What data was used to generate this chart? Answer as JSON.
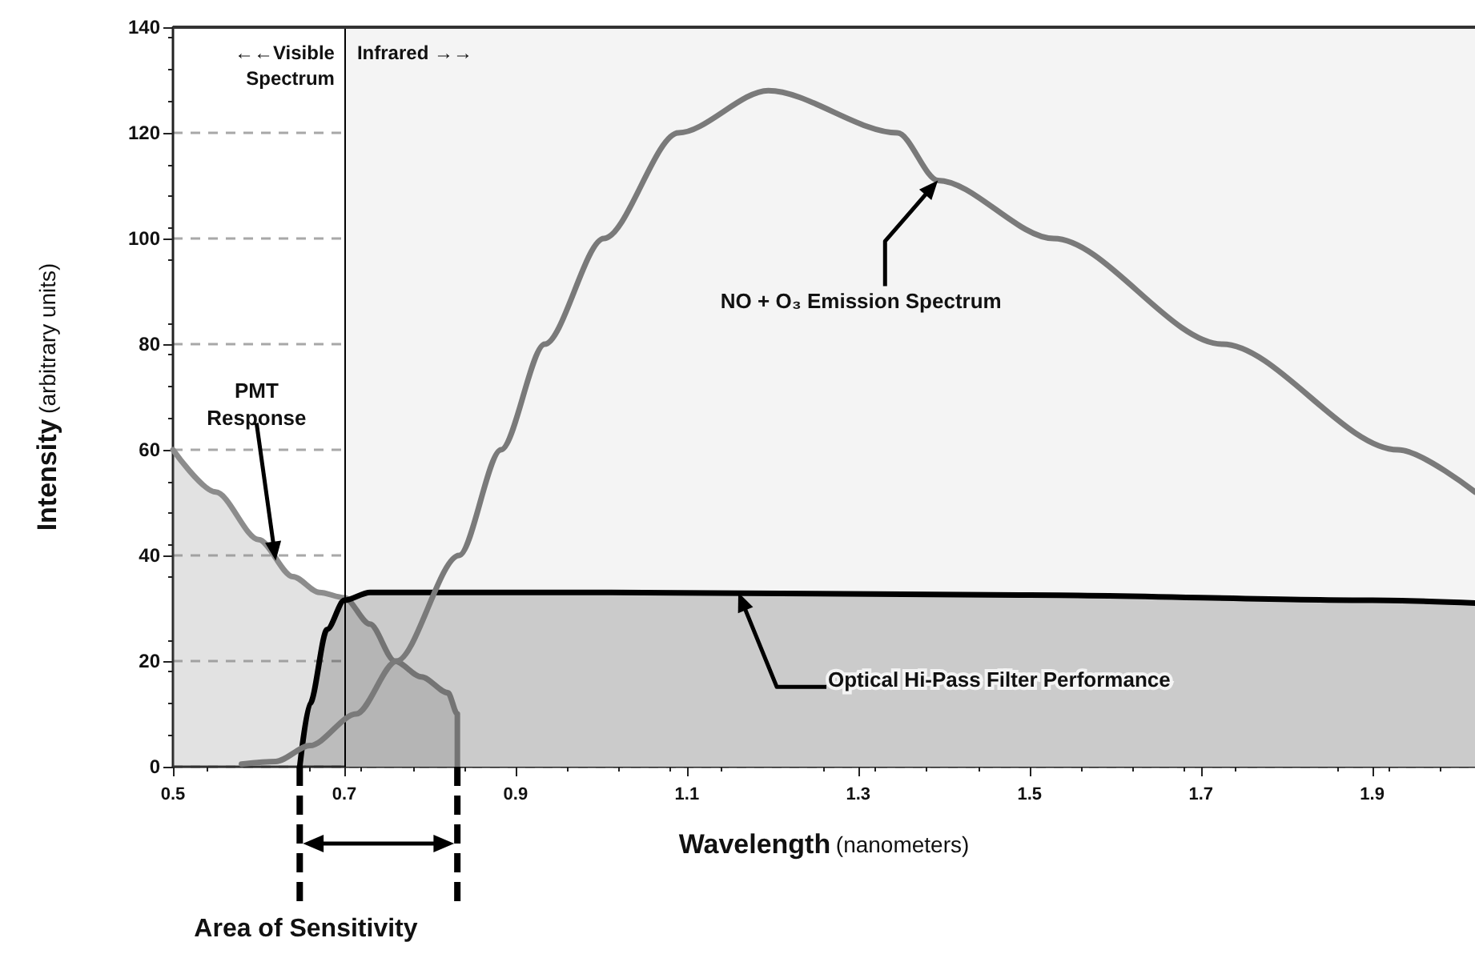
{
  "chart_data": {
    "type": "area",
    "xlabel": "Wavelength (nanometers)",
    "ylabel": "Intensity (arbitrary units)",
    "xlim": [
      0.5,
      2.02
    ],
    "xticks": [
      0.5,
      0.7,
      0.9,
      1.1,
      1.3,
      1.5,
      1.7,
      1.9
    ],
    "ylim": [
      0,
      140
    ],
    "yticks": [
      0,
      20,
      40,
      60,
      80,
      100,
      120,
      140
    ],
    "grid": "y",
    "marker": "none",
    "line_style": "solid",
    "series": [
      {
        "color": "#8c8c8c",
        "x": [
          0.5,
          0.55,
          0.6,
          0.64,
          0.671,
          0.7,
          0.73,
          0.759,
          0.79,
          0.821,
          0.832,
          0.832
        ],
        "values": [
          60,
          52,
          43,
          36,
          33,
          32,
          27,
          20,
          17,
          14,
          10,
          0
        ]
      },
      {
        "color": "#000000",
        "x": [
          0.648,
          0.66,
          0.68,
          0.7,
          0.73,
          1.0,
          1.5,
          1.9,
          2.02
        ],
        "values": [
          0,
          12,
          26,
          31.5,
          33,
          33,
          32.5,
          31.5,
          31
        ]
      },
      {
        "type": "line",
        "color": "#7a7a7a",
        "x": [
          0.58,
          0.62,
          0.66,
          0.714,
          0.761,
          0.834,
          0.883,
          0.934,
          1.003,
          1.09,
          1.195,
          1.346,
          1.393,
          1.528,
          1.725,
          1.93,
          2.02
        ],
        "values": [
          0.5,
          1,
          4,
          10,
          20,
          40,
          60,
          80,
          100,
          120,
          128,
          120,
          111,
          100,
          80,
          60,
          52
        ]
      }
    ],
    "ref_lines": [
      {
        "axis": "x",
        "value": 0.7,
        "color": "#000000"
      }
    ],
    "bands": [
      {
        "axis": "x",
        "from": 0.7,
        "to": 2.02,
        "color": "#f4f4f4"
      }
    ],
    "annotations": [
      "←←Visible Spectrum",
      "Infrared →→",
      {
        "text": "PMT Response",
        "x": 0.62,
        "y": 39
      },
      {
        "text": "NO + O₃ Emission Spectrum",
        "x": 1.393,
        "y": 111
      },
      {
        "text": "Optical Hi-Pass Filter Performance",
        "x": 1.16,
        "y": 33
      },
      "Area of Sensitivity"
    ]
  }
}
